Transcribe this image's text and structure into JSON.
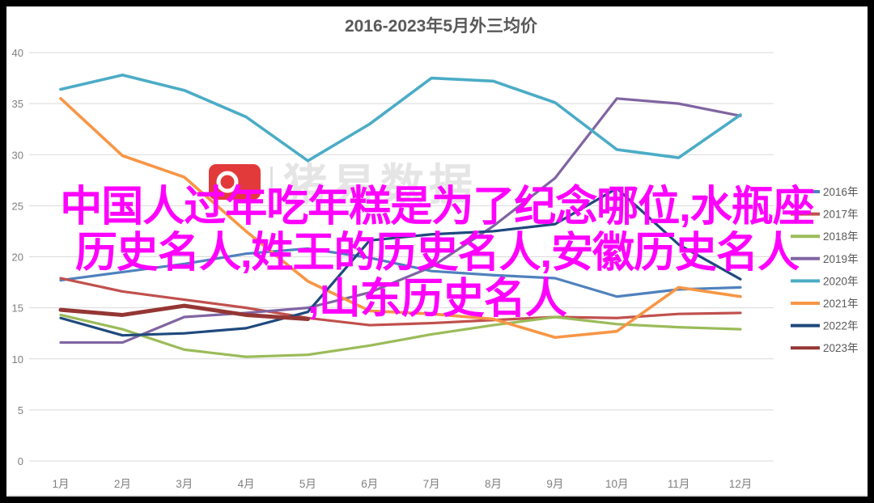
{
  "page": {
    "frame_color": "#000000",
    "card_color": "#ffffff"
  },
  "header": {
    "title": "2016-2023年5月外三均价",
    "title_color": "#595959"
  },
  "overlay": {
    "color": "#ff00ff",
    "line1": "中国人过年吃年糕是为了纪念哪位,水瓶座",
    "line2": "历史名人,姓王的历史名人,安徽历史名人",
    "line3": ",山东历史名人",
    "full_text": "中国人过年吃年糕是为了纪念哪位,水瓶座历史名人,姓王的历史名人,安徽历史名人,山东历史名人"
  },
  "watermark": {
    "text": "猪易数据",
    "text_color": "#e5e5e5",
    "logo_color": "#e23a3a",
    "divider_color": "#e0e0e0"
  },
  "chart_data": {
    "type": "line",
    "title": "2016-2023年5月外三均价",
    "xlabel": "",
    "ylabel": "",
    "ylim": [
      0,
      40
    ],
    "ytick_step": 5,
    "grid": true,
    "legend_position": "right",
    "axis_label_color": "#808080",
    "legend_label_color": "#595959",
    "gridline_color": "#d9d9d9",
    "categories": [
      "1月",
      "2月",
      "3月",
      "4月",
      "5月",
      "6月",
      "7月",
      "8月",
      "9月",
      "10月",
      "11月",
      "12月"
    ],
    "series": [
      {
        "name": "2016年",
        "color": "#4f81bd",
        "width": 3.2,
        "values": [
          17.7,
          18.5,
          19.3,
          20.3,
          20.8,
          19.9,
          18.6,
          18.2,
          17.9,
          16.1,
          16.8,
          17.0
        ]
      },
      {
        "name": "2017年",
        "color": "#c0504d",
        "width": 3.2,
        "values": [
          17.9,
          16.6,
          15.8,
          15.0,
          14.0,
          13.3,
          13.5,
          13.8,
          14.1,
          14.0,
          14.4,
          14.5
        ]
      },
      {
        "name": "2018年",
        "color": "#9bbb59",
        "width": 3.2,
        "values": [
          14.3,
          12.9,
          10.9,
          10.2,
          10.4,
          11.3,
          12.4,
          13.3,
          14.1,
          13.4,
          13.1,
          12.9
        ]
      },
      {
        "name": "2019年",
        "color": "#8064a2",
        "width": 3.2,
        "values": [
          11.6,
          11.6,
          14.1,
          14.5,
          15.0,
          16.5,
          19.0,
          23.0,
          27.7,
          35.5,
          35.0,
          33.8
        ]
      },
      {
        "name": "2020年",
        "color": "#4bacc6",
        "width": 3.6,
        "values": [
          36.4,
          37.8,
          36.3,
          33.7,
          29.4,
          33.0,
          37.5,
          37.2,
          35.1,
          30.5,
          29.7,
          33.9
        ]
      },
      {
        "name": "2021年",
        "color": "#f79646",
        "width": 3.6,
        "values": [
          35.5,
          29.9,
          27.8,
          22.5,
          17.6,
          14.7,
          14.4,
          13.9,
          12.1,
          12.7,
          17.0,
          16.1
        ]
      },
      {
        "name": "2022年",
        "color": "#1f497d",
        "width": 3.2,
        "values": [
          14.0,
          12.3,
          12.5,
          13.0,
          14.6,
          21.6,
          22.2,
          22.5,
          23.2,
          26.7,
          21.2,
          17.8
        ]
      },
      {
        "name": "2023年",
        "color": "#943634",
        "width": 5,
        "values": [
          14.8,
          14.3,
          15.2,
          14.3,
          13.9,
          null,
          null,
          null,
          null,
          null,
          null,
          null
        ]
      }
    ]
  }
}
